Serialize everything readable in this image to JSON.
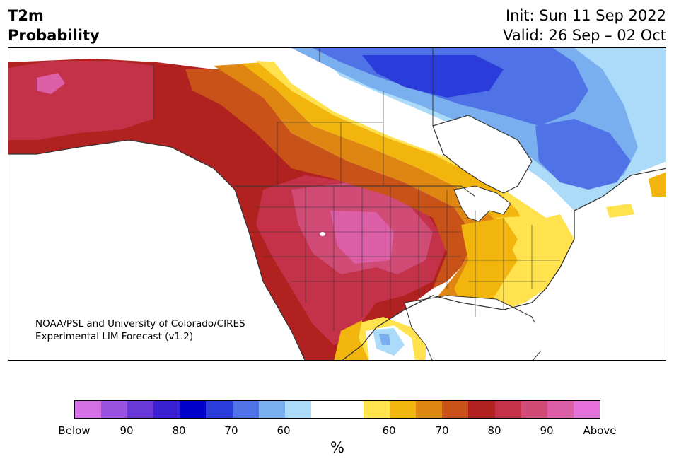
{
  "title": {
    "line1": "T2m",
    "line2": "Probability",
    "init": "Init: Sun 11 Sep 2022",
    "valid": "Valid: 26 Sep – 02 Oct"
  },
  "credit": {
    "line1": "NOAA/PSL and University of Colorado/CIRES",
    "line2": "Experimental LIM Forecast (v1.2)"
  },
  "colorbar": {
    "colors": [
      "#d670e6",
      "#9c52e0",
      "#6b38d8",
      "#3b1fd2",
      "#0000cc",
      "#2a3ddb",
      "#4f73e6",
      "#7aafef",
      "#acdbf9",
      "#ffffff",
      "#ffffff",
      "#ffe24d",
      "#f2b50d",
      "#df8511",
      "#c95218",
      "#b12120",
      "#c33249",
      "#d04b76",
      "#dc5fa8",
      "#e670d9"
    ],
    "labels": [
      "Below",
      "90",
      "80",
      "70",
      "60",
      "60",
      "70",
      "80",
      "90",
      "Above"
    ],
    "unit": "%"
  },
  "map": {
    "palette": {
      "below_50": "#4f73e6",
      "below_40": "#2a3ddb",
      "below_30": "#7aafef",
      "below_20": "#acdbf9",
      "neutral": "#ffffff",
      "above_10": "#ffe24d",
      "above_20": "#f2b50d",
      "above_30": "#df8511",
      "above_40": "#c95218",
      "above_50": "#b12120",
      "above_60": "#c33249",
      "above_70": "#d04b76",
      "above_80": "#dc5fa8"
    }
  }
}
